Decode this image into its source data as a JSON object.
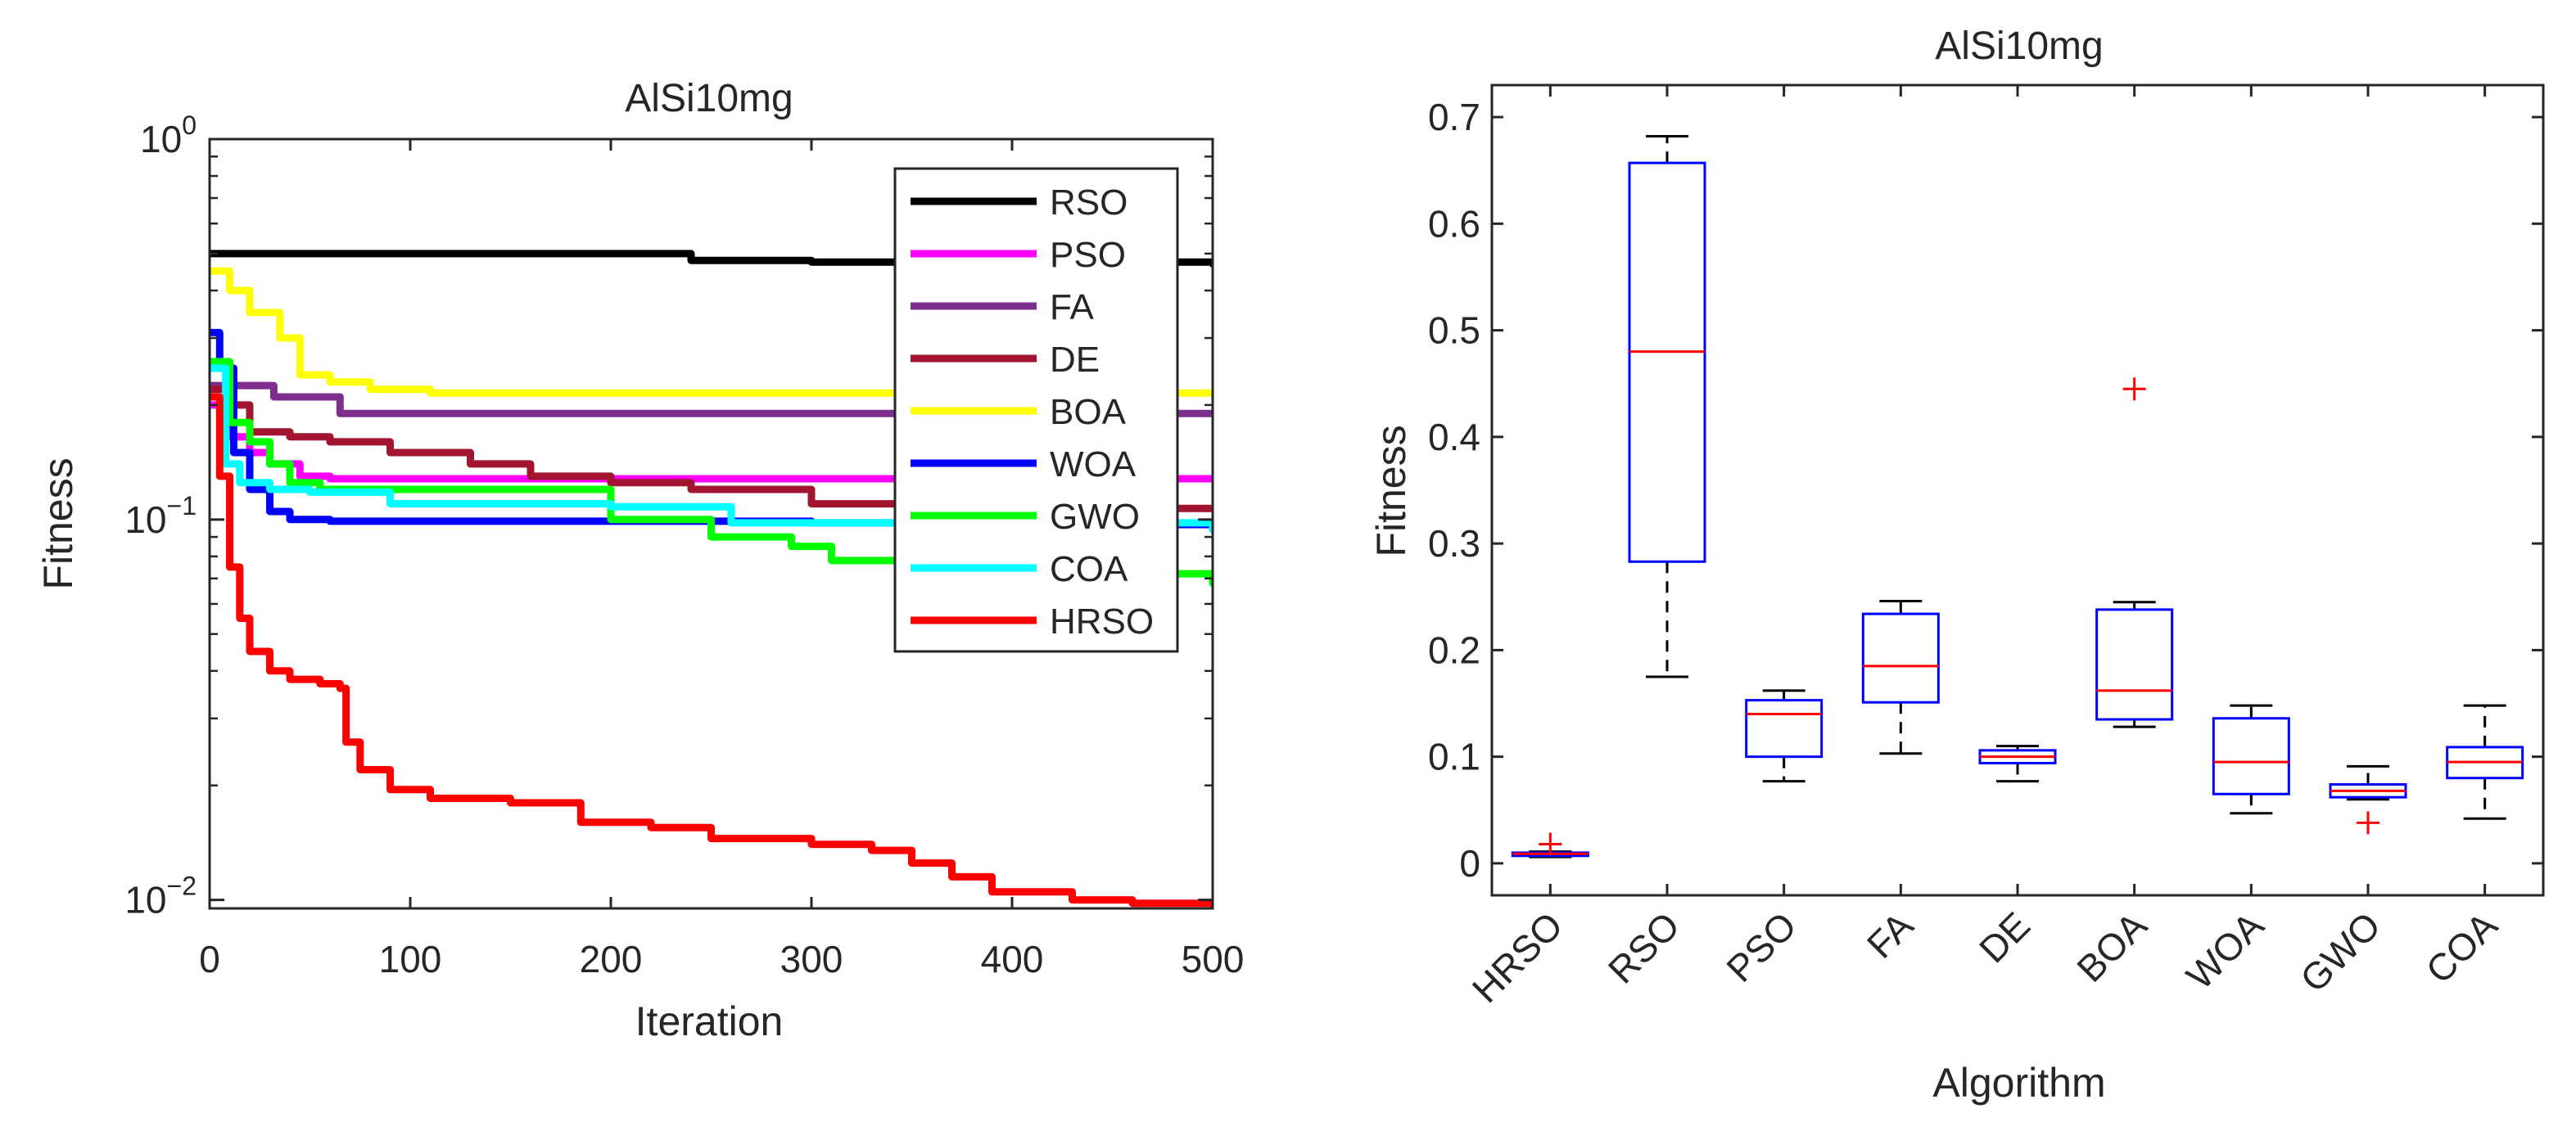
{
  "chart_data": [
    {
      "type": "line",
      "title": "AlSi10mg",
      "xlabel": "Iteration",
      "ylabel": "Fitness",
      "yscale": "log",
      "xlim": [
        0,
        500
      ],
      "ylim": [
        0.0095,
        1
      ],
      "xticks": [
        0,
        100,
        200,
        300,
        400,
        500
      ],
      "yticks": [
        {
          "value": 0.01,
          "base": "10",
          "exp": "−2"
        },
        {
          "value": 0.1,
          "base": "10",
          "exp": "−1"
        },
        {
          "value": 1,
          "base": "10",
          "exp": "0"
        }
      ],
      "legend": "top-right",
      "series": [
        {
          "name": "RSO",
          "color": "#000000",
          "points": [
            [
              0,
              0.5
            ],
            [
              120,
              0.5
            ],
            [
              230,
              0.5
            ],
            [
              240,
              0.48
            ],
            [
              300,
              0.475
            ],
            [
              400,
              0.475
            ],
            [
              500,
              0.47
            ]
          ]
        },
        {
          "name": "PSO",
          "color": "#ff00ff",
          "points": [
            [
              0,
              0.2
            ],
            [
              10,
              0.165
            ],
            [
              20,
              0.15
            ],
            [
              30,
              0.14
            ],
            [
              45,
              0.13
            ],
            [
              60,
              0.128
            ],
            [
              100,
              0.128
            ],
            [
              300,
              0.128
            ],
            [
              500,
              0.128
            ]
          ]
        },
        {
          "name": "FA",
          "color": "#7e2f8e",
          "points": [
            [
              0,
              0.225
            ],
            [
              30,
              0.225
            ],
            [
              32,
              0.21
            ],
            [
              60,
              0.21
            ],
            [
              65,
              0.19
            ],
            [
              100,
              0.19
            ],
            [
              300,
              0.19
            ],
            [
              500,
              0.19
            ]
          ]
        },
        {
          "name": "DE",
          "color": "#a2142f",
          "points": [
            [
              0,
              0.22
            ],
            [
              10,
              0.2
            ],
            [
              20,
              0.17
            ],
            [
              40,
              0.165
            ],
            [
              60,
              0.16
            ],
            [
              90,
              0.15
            ],
            [
              130,
              0.14
            ],
            [
              160,
              0.13
            ],
            [
              200,
              0.125
            ],
            [
              240,
              0.12
            ],
            [
              300,
              0.11
            ],
            [
              360,
              0.107
            ],
            [
              500,
              0.107
            ]
          ]
        },
        {
          "name": "BOA",
          "color": "#ffff00",
          "points": [
            [
              0,
              0.45
            ],
            [
              10,
              0.4
            ],
            [
              20,
              0.35
            ],
            [
              35,
              0.3
            ],
            [
              45,
              0.24
            ],
            [
              60,
              0.23
            ],
            [
              80,
              0.22
            ],
            [
              110,
              0.215
            ],
            [
              200,
              0.215
            ],
            [
              300,
              0.215
            ],
            [
              500,
              0.215
            ]
          ]
        },
        {
          "name": "WOA",
          "color": "#0000ff",
          "points": [
            [
              0,
              0.31
            ],
            [
              5,
              0.25
            ],
            [
              12,
              0.15
            ],
            [
              20,
              0.12
            ],
            [
              30,
              0.105
            ],
            [
              40,
              0.1
            ],
            [
              60,
              0.099
            ],
            [
              100,
              0.099
            ],
            [
              300,
              0.098
            ],
            [
              450,
              0.097
            ],
            [
              500,
              0.095
            ]
          ]
        },
        {
          "name": "GWO",
          "color": "#00ff00",
          "points": [
            [
              0,
              0.26
            ],
            [
              10,
              0.18
            ],
            [
              20,
              0.16
            ],
            [
              30,
              0.14
            ],
            [
              40,
              0.125
            ],
            [
              55,
              0.12
            ],
            [
              60,
              0.12
            ],
            [
              200,
              0.1
            ],
            [
              250,
              0.09
            ],
            [
              290,
              0.085
            ],
            [
              310,
              0.078
            ],
            [
              400,
              0.078
            ],
            [
              430,
              0.072
            ],
            [
              500,
              0.068
            ]
          ]
        },
        {
          "name": "COA",
          "color": "#00ffff",
          "points": [
            [
              0,
              0.25
            ],
            [
              8,
              0.14
            ],
            [
              15,
              0.125
            ],
            [
              30,
              0.12
            ],
            [
              50,
              0.118
            ],
            [
              70,
              0.118
            ],
            [
              90,
              0.11
            ],
            [
              150,
              0.11
            ],
            [
              200,
              0.108
            ],
            [
              260,
              0.098
            ],
            [
              400,
              0.098
            ],
            [
              480,
              0.098
            ],
            [
              500,
              0.094
            ]
          ]
        },
        {
          "name": "HRSO",
          "color": "#ff0000",
          "points": [
            [
              0,
              0.21
            ],
            [
              5,
              0.13
            ],
            [
              10,
              0.075
            ],
            [
              15,
              0.055
            ],
            [
              20,
              0.045
            ],
            [
              30,
              0.04
            ],
            [
              40,
              0.038
            ],
            [
              55,
              0.037
            ],
            [
              65,
              0.036
            ],
            [
              68,
              0.026
            ],
            [
              75,
              0.022
            ],
            [
              90,
              0.0195
            ],
            [
              110,
              0.0185
            ],
            [
              150,
              0.018
            ],
            [
              175,
              0.018
            ],
            [
              185,
              0.016
            ],
            [
              220,
              0.0155
            ],
            [
              250,
              0.0145
            ],
            [
              300,
              0.014
            ],
            [
              330,
              0.0135
            ],
            [
              350,
              0.0125
            ],
            [
              370,
              0.0115
            ],
            [
              390,
              0.0105
            ],
            [
              430,
              0.01
            ],
            [
              460,
              0.0098
            ],
            [
              500,
              0.0097
            ]
          ]
        }
      ]
    },
    {
      "type": "box",
      "title": "AlSi10mg",
      "xlabel": "Algorithm",
      "ylabel": "Fitness",
      "ylim": [
        -0.03,
        0.73
      ],
      "yticks": [
        0,
        0.1,
        0.2,
        0.3,
        0.4,
        0.5,
        0.6,
        0.7
      ],
      "ytick_labels": [
        "0",
        "0.1",
        "0.2",
        "0.3",
        "0.4",
        "0.5",
        "0.6",
        "0.7"
      ],
      "categories": [
        "HRSO",
        "RSO",
        "PSO",
        "FA",
        "DE",
        "BOA",
        "WOA",
        "GWO",
        "COA"
      ],
      "boxes": [
        {
          "name": "HRSO",
          "whisker_low": 0.006,
          "q1": 0.007,
          "median": 0.009,
          "q3": 0.01,
          "whisker_high": 0.011,
          "outliers": [
            0.018
          ]
        },
        {
          "name": "RSO",
          "whisker_low": 0.175,
          "q1": 0.283,
          "median": 0.48,
          "q3": 0.657,
          "whisker_high": 0.682,
          "outliers": []
        },
        {
          "name": "PSO",
          "whisker_low": 0.077,
          "q1": 0.1,
          "median": 0.14,
          "q3": 0.153,
          "whisker_high": 0.162,
          "outliers": []
        },
        {
          "name": "FA",
          "whisker_low": 0.103,
          "q1": 0.151,
          "median": 0.185,
          "q3": 0.234,
          "whisker_high": 0.246,
          "outliers": []
        },
        {
          "name": "DE",
          "whisker_low": 0.077,
          "q1": 0.094,
          "median": 0.1,
          "q3": 0.106,
          "whisker_high": 0.11,
          "outliers": []
        },
        {
          "name": "BOA",
          "whisker_low": 0.128,
          "q1": 0.135,
          "median": 0.162,
          "q3": 0.238,
          "whisker_high": 0.245,
          "outliers": [
            0.445
          ]
        },
        {
          "name": "WOA",
          "whisker_low": 0.047,
          "q1": 0.065,
          "median": 0.095,
          "q3": 0.136,
          "whisker_high": 0.148,
          "outliers": []
        },
        {
          "name": "GWO",
          "whisker_low": 0.06,
          "q1": 0.062,
          "median": 0.068,
          "q3": 0.074,
          "whisker_high": 0.091,
          "outliers": [
            0.038
          ]
        },
        {
          "name": "COA",
          "whisker_low": 0.042,
          "q1": 0.08,
          "median": 0.095,
          "q3": 0.109,
          "whisker_high": 0.148,
          "outliers": []
        }
      ]
    }
  ]
}
